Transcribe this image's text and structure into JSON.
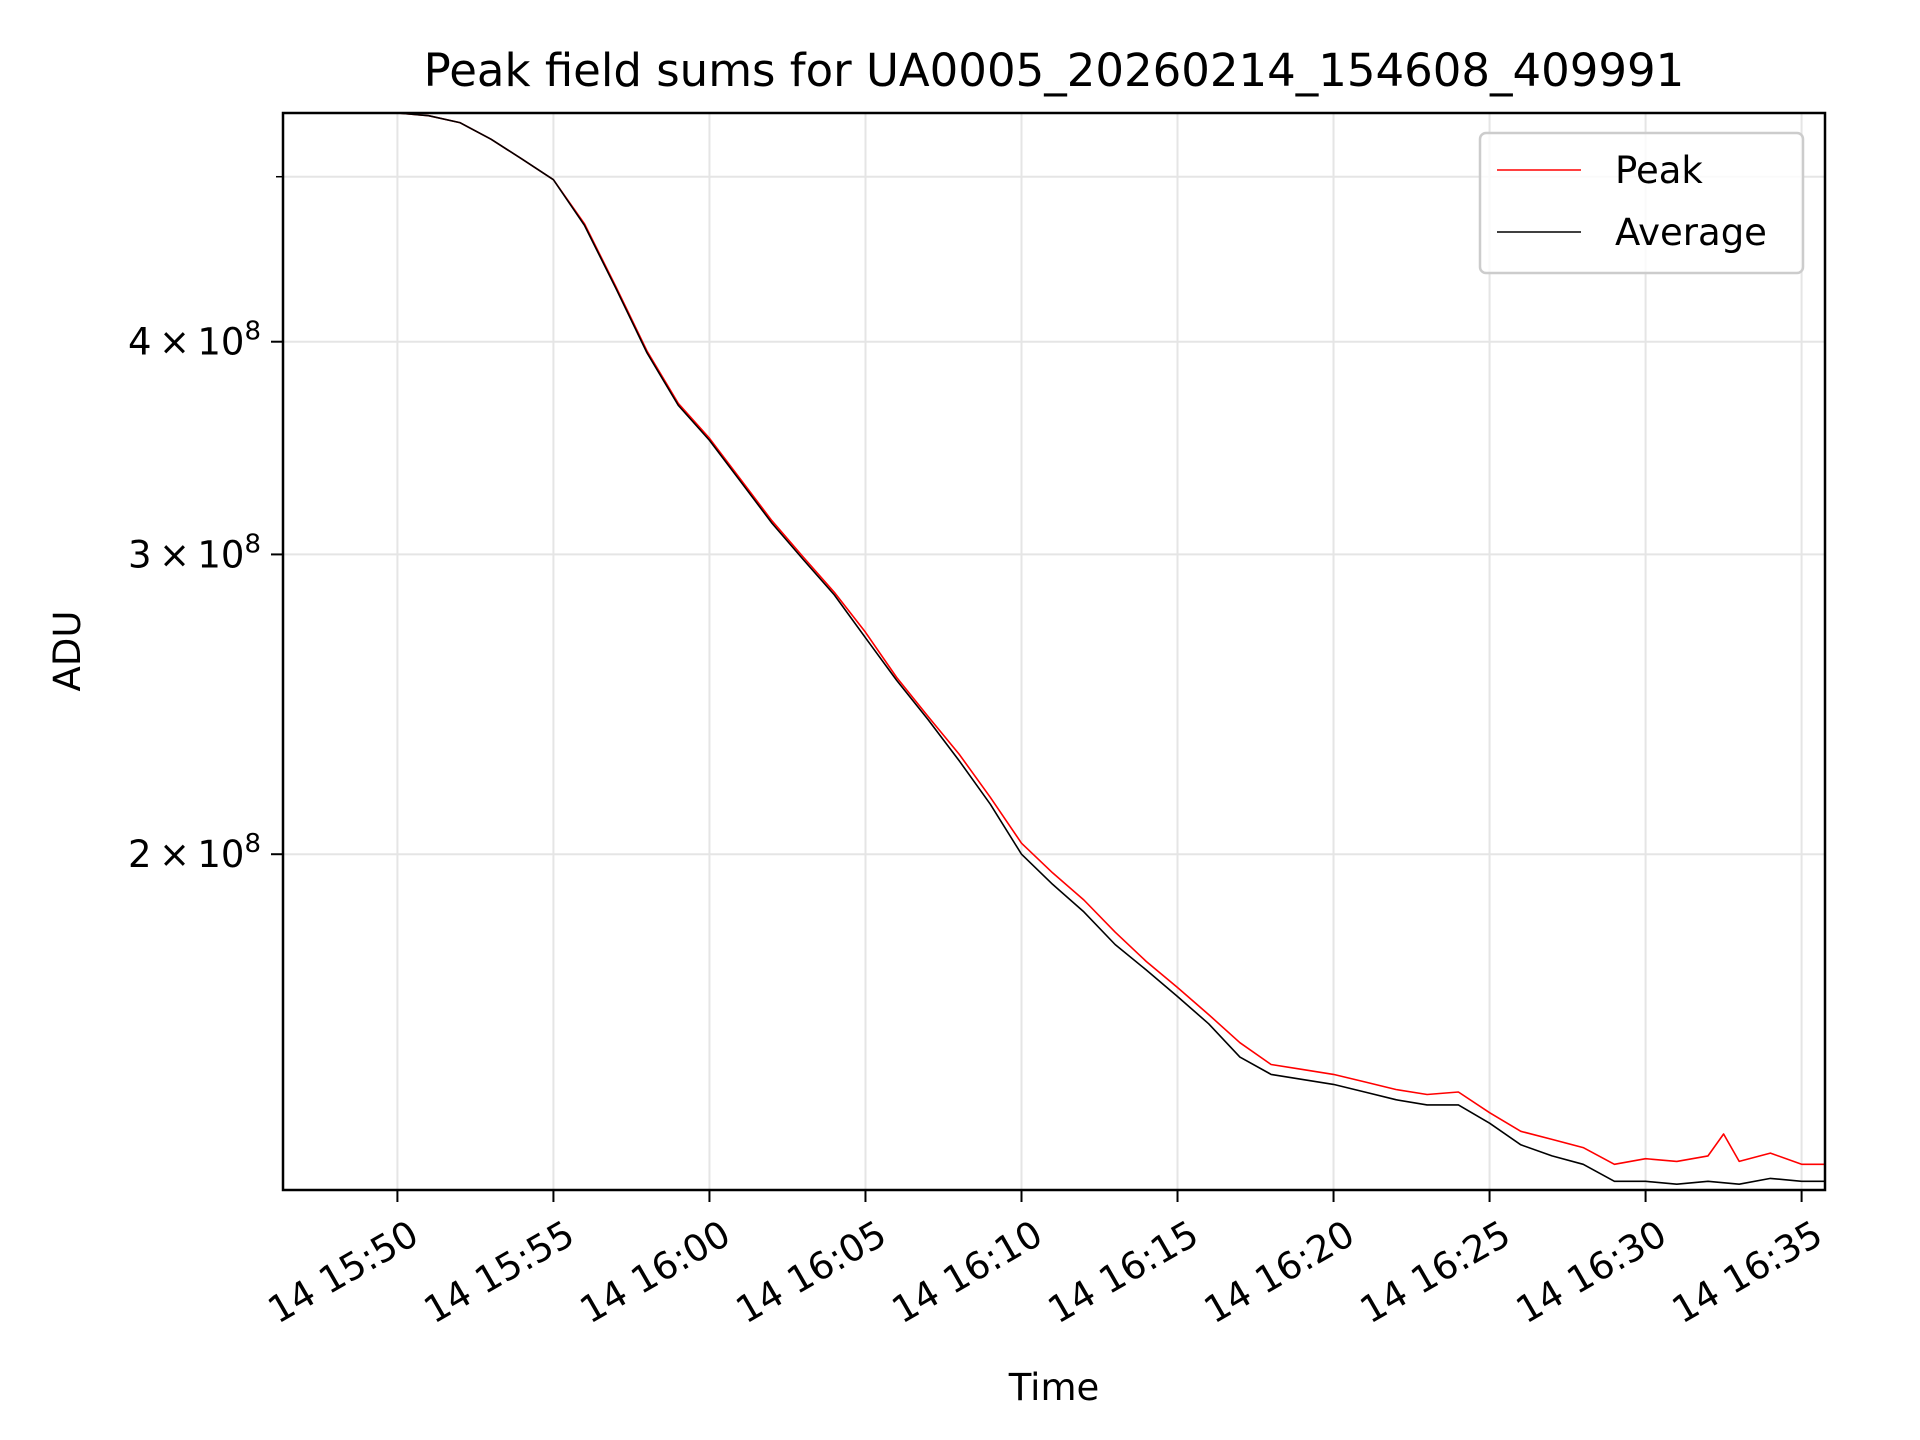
{
  "chart_data": {
    "type": "line",
    "title": "Peak field sums for UA0005_20260214_154608_409991",
    "xlabel": "Time",
    "ylabel": "ADU",
    "yscale": "log",
    "grid": true,
    "legend_position": "top-right",
    "x_start": "2026-02-14T15:46:20",
    "x_end": "2026-02-14T16:35:45",
    "xlim": [
      "2026-02-14T15:46:20",
      "2026-02-14T16:35:45"
    ],
    "ylim": [
      127000000,
      545000000
    ],
    "x_ticks": [
      {
        "value": "2026-02-14T15:50:00",
        "label": "14 15:50"
      },
      {
        "value": "2026-02-14T15:55:00",
        "label": "14 15:55"
      },
      {
        "value": "2026-02-14T16:00:00",
        "label": "14 16:00"
      },
      {
        "value": "2026-02-14T16:05:00",
        "label": "14 16:05"
      },
      {
        "value": "2026-02-14T16:10:00",
        "label": "14 16:10"
      },
      {
        "value": "2026-02-14T16:15:00",
        "label": "14 16:15"
      },
      {
        "value": "2026-02-14T16:20:00",
        "label": "14 16:20"
      },
      {
        "value": "2026-02-14T16:25:00",
        "label": "14 16:25"
      },
      {
        "value": "2026-02-14T16:30:00",
        "label": "14 16:30"
      },
      {
        "value": "2026-02-14T16:35:00",
        "label": "14 16:35"
      }
    ],
    "y_ticks": [
      {
        "value": 200000000,
        "base": "2 × 10",
        "exp": "8"
      },
      {
        "value": 300000000,
        "base": "3 × 10",
        "exp": "8"
      },
      {
        "value": 400000000,
        "base": "4 × 10",
        "exp": "8"
      }
    ],
    "y_minor_ticks": [
      500000000
    ],
    "series": [
      {
        "name": "Peak",
        "color": "#ff0000",
        "points": [
          [
            "2026-02-14T15:46:20",
            545000000
          ],
          [
            "2026-02-14T15:50:00",
            545000000
          ],
          [
            "2026-02-14T15:51:00",
            543000000
          ],
          [
            "2026-02-14T15:52:00",
            538000000
          ],
          [
            "2026-02-14T15:53:00",
            526000000
          ],
          [
            "2026-02-14T15:54:00",
            512000000
          ],
          [
            "2026-02-14T15:55:00",
            498000000
          ],
          [
            "2026-02-14T15:56:00",
            469000000
          ],
          [
            "2026-02-14T15:57:00",
            431000000
          ],
          [
            "2026-02-14T15:58:00",
            395000000
          ],
          [
            "2026-02-14T15:59:00",
            368000000
          ],
          [
            "2026-02-14T16:00:00",
            351000000
          ],
          [
            "2026-02-14T16:01:00",
            332000000
          ],
          [
            "2026-02-14T16:02:00",
            314000000
          ],
          [
            "2026-02-14T16:03:00",
            299000000
          ],
          [
            "2026-02-14T16:04:00",
            285000000
          ],
          [
            "2026-02-14T16:05:00",
            270000000
          ],
          [
            "2026-02-14T16:06:00",
            254000000
          ],
          [
            "2026-02-14T16:07:00",
            241000000
          ],
          [
            "2026-02-14T16:08:00",
            229000000
          ],
          [
            "2026-02-14T16:09:00",
            216000000
          ],
          [
            "2026-02-14T16:10:00",
            203000000
          ],
          [
            "2026-02-14T16:11:00",
            195000000
          ],
          [
            "2026-02-14T16:12:00",
            188000000
          ],
          [
            "2026-02-14T16:13:00",
            180000000
          ],
          [
            "2026-02-14T16:14:00",
            173000000
          ],
          [
            "2026-02-14T16:15:00",
            167000000
          ],
          [
            "2026-02-14T16:16:00",
            161000000
          ],
          [
            "2026-02-14T16:17:00",
            155000000
          ],
          [
            "2026-02-14T16:18:00",
            150500000
          ],
          [
            "2026-02-14T16:19:00",
            149500000
          ],
          [
            "2026-02-14T16:20:00",
            148500000
          ],
          [
            "2026-02-14T16:21:00",
            147000000
          ],
          [
            "2026-02-14T16:22:00",
            145500000
          ],
          [
            "2026-02-14T16:23:00",
            144500000
          ],
          [
            "2026-02-14T16:24:00",
            145000000
          ],
          [
            "2026-02-14T16:25:00",
            141000000
          ],
          [
            "2026-02-14T16:26:00",
            137500000
          ],
          [
            "2026-02-14T16:27:00",
            136000000
          ],
          [
            "2026-02-14T16:28:00",
            134500000
          ],
          [
            "2026-02-14T16:29:00",
            131500000
          ],
          [
            "2026-02-14T16:30:00",
            132500000
          ],
          [
            "2026-02-14T16:31:00",
            132000000
          ],
          [
            "2026-02-14T16:32:00",
            133000000
          ],
          [
            "2026-02-14T16:32:30",
            137000000
          ],
          [
            "2026-02-14T16:33:00",
            132000000
          ],
          [
            "2026-02-14T16:34:00",
            133500000
          ],
          [
            "2026-02-14T16:35:00",
            131500000
          ],
          [
            "2026-02-14T16:35:45",
            131500000
          ]
        ]
      },
      {
        "name": "Average",
        "color": "#000000",
        "points": [
          [
            "2026-02-14T15:46:20",
            545000000
          ],
          [
            "2026-02-14T15:50:00",
            545000000
          ],
          [
            "2026-02-14T15:51:00",
            543000000
          ],
          [
            "2026-02-14T15:52:00",
            538000000
          ],
          [
            "2026-02-14T15:53:00",
            526000000
          ],
          [
            "2026-02-14T15:54:00",
            512000000
          ],
          [
            "2026-02-14T15:55:00",
            498000000
          ],
          [
            "2026-02-14T15:56:00",
            468000000
          ],
          [
            "2026-02-14T15:57:00",
            430000000
          ],
          [
            "2026-02-14T15:58:00",
            394000000
          ],
          [
            "2026-02-14T15:59:00",
            367000000
          ],
          [
            "2026-02-14T16:00:00",
            350000000
          ],
          [
            "2026-02-14T16:01:00",
            331000000
          ],
          [
            "2026-02-14T16:02:00",
            313000000
          ],
          [
            "2026-02-14T16:03:00",
            298000000
          ],
          [
            "2026-02-14T16:04:00",
            284000000
          ],
          [
            "2026-02-14T16:05:00",
            268000000
          ],
          [
            "2026-02-14T16:06:00",
            253000000
          ],
          [
            "2026-02-14T16:07:00",
            240000000
          ],
          [
            "2026-02-14T16:08:00",
            227000000
          ],
          [
            "2026-02-14T16:09:00",
            214000000
          ],
          [
            "2026-02-14T16:10:00",
            200000000
          ],
          [
            "2026-02-14T16:11:00",
            192000000
          ],
          [
            "2026-02-14T16:12:00",
            185000000
          ],
          [
            "2026-02-14T16:13:00",
            177000000
          ],
          [
            "2026-02-14T16:14:00",
            171000000
          ],
          [
            "2026-02-14T16:15:00",
            165000000
          ],
          [
            "2026-02-14T16:16:00",
            159000000
          ],
          [
            "2026-02-14T16:17:00",
            152000000
          ],
          [
            "2026-02-14T16:18:00",
            148500000
          ],
          [
            "2026-02-14T16:19:00",
            147500000
          ],
          [
            "2026-02-14T16:20:00",
            146500000
          ],
          [
            "2026-02-14T16:21:00",
            145000000
          ],
          [
            "2026-02-14T16:22:00",
            143500000
          ],
          [
            "2026-02-14T16:23:00",
            142500000
          ],
          [
            "2026-02-14T16:24:00",
            142500000
          ],
          [
            "2026-02-14T16:25:00",
            139000000
          ],
          [
            "2026-02-14T16:26:00",
            135000000
          ],
          [
            "2026-02-14T16:27:00",
            133000000
          ],
          [
            "2026-02-14T16:28:00",
            131500000
          ],
          [
            "2026-02-14T16:29:00",
            128500000
          ],
          [
            "2026-02-14T16:30:00",
            128500000
          ],
          [
            "2026-02-14T16:31:00",
            128000000
          ],
          [
            "2026-02-14T16:32:00",
            128500000
          ],
          [
            "2026-02-14T16:33:00",
            128000000
          ],
          [
            "2026-02-14T16:34:00",
            129000000
          ],
          [
            "2026-02-14T16:35:00",
            128500000
          ],
          [
            "2026-02-14T16:35:45",
            128500000
          ]
        ]
      }
    ]
  }
}
